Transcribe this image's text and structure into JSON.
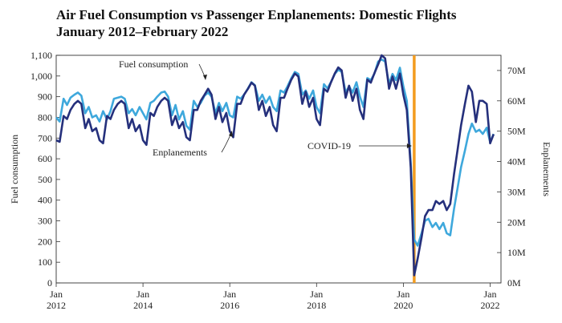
{
  "chart_data": {
    "type": "line",
    "title": "Air Fuel Consumption vs Passenger Enplanements: Domestic Flights",
    "subtitle": "January 2012–February 2022",
    "ylabel": "Fuel consumption",
    "y2label": "Enplanements",
    "ylim": [
      0,
      1100
    ],
    "y2lim": [
      0,
      75
    ],
    "yticks": [
      "0",
      "100",
      "200",
      "300",
      "400",
      "500",
      "600",
      "700",
      "800",
      "900",
      "1,000",
      "1,100"
    ],
    "y2ticks": [
      "0M",
      "10M",
      "20M",
      "30M",
      "40M",
      "50M",
      "60M",
      "70M"
    ],
    "xticks": [
      {
        "value": 2012,
        "line1": "Jan",
        "line2": "2012"
      },
      {
        "value": 2014,
        "line1": "Jan",
        "line2": "2014"
      },
      {
        "value": 2016,
        "line1": "Jan",
        "line2": "2016"
      },
      {
        "value": 2018,
        "line1": "Jan",
        "line2": "2018"
      },
      {
        "value": 2020,
        "line1": "Jan",
        "line2": "2020"
      },
      {
        "value": 2022,
        "line1": "Jan",
        "line2": "2022"
      }
    ],
    "xlim": [
      2012,
      2022.25
    ],
    "series": [
      {
        "name": "Fuel consumption",
        "axis": "left",
        "color": "#3ea8dc",
        "points": [
          [
            2012.0,
            800
          ],
          [
            2012.08,
            780
          ],
          [
            2012.17,
            890
          ],
          [
            2012.25,
            860
          ],
          [
            2012.33,
            895
          ],
          [
            2012.42,
            910
          ],
          [
            2012.5,
            920
          ],
          [
            2012.58,
            905
          ],
          [
            2012.67,
            820
          ],
          [
            2012.75,
            850
          ],
          [
            2012.83,
            800
          ],
          [
            2012.92,
            810
          ],
          [
            2013.0,
            780
          ],
          [
            2013.08,
            830
          ],
          [
            2013.17,
            790
          ],
          [
            2013.25,
            830
          ],
          [
            2013.33,
            890
          ],
          [
            2013.42,
            895
          ],
          [
            2013.5,
            900
          ],
          [
            2013.58,
            890
          ],
          [
            2013.67,
            820
          ],
          [
            2013.75,
            840
          ],
          [
            2013.83,
            810
          ],
          [
            2013.92,
            850
          ],
          [
            2014.0,
            820
          ],
          [
            2014.08,
            790
          ],
          [
            2014.17,
            870
          ],
          [
            2014.25,
            880
          ],
          [
            2014.33,
            900
          ],
          [
            2014.42,
            920
          ],
          [
            2014.5,
            925
          ],
          [
            2014.58,
            900
          ],
          [
            2014.67,
            810
          ],
          [
            2014.75,
            860
          ],
          [
            2014.83,
            790
          ],
          [
            2014.92,
            830
          ],
          [
            2015.0,
            760
          ],
          [
            2015.08,
            740
          ],
          [
            2015.17,
            880
          ],
          [
            2015.25,
            850
          ],
          [
            2015.33,
            870
          ],
          [
            2015.42,
            905
          ],
          [
            2015.5,
            920
          ],
          [
            2015.58,
            900
          ],
          [
            2015.67,
            820
          ],
          [
            2015.75,
            870
          ],
          [
            2015.83,
            830
          ],
          [
            2015.92,
            870
          ],
          [
            2016.0,
            810
          ],
          [
            2016.08,
            800
          ],
          [
            2016.17,
            900
          ],
          [
            2016.25,
            890
          ],
          [
            2016.33,
            910
          ],
          [
            2016.42,
            940
          ],
          [
            2016.5,
            970
          ],
          [
            2016.58,
            955
          ],
          [
            2016.67,
            880
          ],
          [
            2016.75,
            910
          ],
          [
            2016.83,
            870
          ],
          [
            2016.92,
            900
          ],
          [
            2017.0,
            850
          ],
          [
            2017.08,
            830
          ],
          [
            2017.17,
            930
          ],
          [
            2017.25,
            920
          ],
          [
            2017.33,
            950
          ],
          [
            2017.42,
            990
          ],
          [
            2017.5,
            1020
          ],
          [
            2017.58,
            1010
          ],
          [
            2017.67,
            910
          ],
          [
            2017.75,
            930
          ],
          [
            2017.83,
            890
          ],
          [
            2017.92,
            930
          ],
          [
            2018.0,
            850
          ],
          [
            2018.08,
            820
          ],
          [
            2018.17,
            960
          ],
          [
            2018.25,
            940
          ],
          [
            2018.33,
            970
          ],
          [
            2018.42,
            1010
          ],
          [
            2018.5,
            1030
          ],
          [
            2018.58,
            1020
          ],
          [
            2018.67,
            920
          ],
          [
            2018.75,
            950
          ],
          [
            2018.83,
            920
          ],
          [
            2018.92,
            970
          ],
          [
            2019.0,
            900
          ],
          [
            2019.08,
            850
          ],
          [
            2019.17,
            990
          ],
          [
            2019.25,
            980
          ],
          [
            2019.33,
            1010
          ],
          [
            2019.42,
            1070
          ],
          [
            2019.5,
            1080
          ],
          [
            2019.58,
            1070
          ],
          [
            2019.67,
            960
          ],
          [
            2019.75,
            1010
          ],
          [
            2019.83,
            980
          ],
          [
            2019.92,
            1040
          ],
          [
            2020.0,
            950
          ],
          [
            2020.08,
            880
          ],
          [
            2020.17,
            580
          ],
          [
            2020.25,
            210
          ],
          [
            2020.33,
            180
          ],
          [
            2020.42,
            240
          ],
          [
            2020.5,
            300
          ],
          [
            2020.58,
            310
          ],
          [
            2020.67,
            270
          ],
          [
            2020.75,
            290
          ],
          [
            2020.83,
            260
          ],
          [
            2020.92,
            290
          ],
          [
            2021.0,
            240
          ],
          [
            2021.08,
            230
          ],
          [
            2021.17,
            360
          ],
          [
            2021.25,
            460
          ],
          [
            2021.33,
            560
          ],
          [
            2021.42,
            640
          ],
          [
            2021.5,
            720
          ],
          [
            2021.58,
            770
          ],
          [
            2021.67,
            730
          ],
          [
            2021.75,
            740
          ],
          [
            2021.83,
            720
          ],
          [
            2021.92,
            750
          ],
          [
            2022.0,
            680
          ],
          [
            2022.08,
            720
          ]
        ]
      },
      {
        "name": "Enplanements",
        "axis": "right",
        "color": "#25307c",
        "points": [
          [
            2012.0,
            47
          ],
          [
            2012.08,
            46.5
          ],
          [
            2012.17,
            55
          ],
          [
            2012.25,
            54
          ],
          [
            2012.33,
            57
          ],
          [
            2012.42,
            59
          ],
          [
            2012.5,
            60
          ],
          [
            2012.58,
            59
          ],
          [
            2012.67,
            51
          ],
          [
            2012.75,
            54
          ],
          [
            2012.83,
            50
          ],
          [
            2012.92,
            51
          ],
          [
            2013.0,
            47
          ],
          [
            2013.08,
            46
          ],
          [
            2013.17,
            55
          ],
          [
            2013.25,
            54
          ],
          [
            2013.33,
            57
          ],
          [
            2013.42,
            59
          ],
          [
            2013.5,
            60
          ],
          [
            2013.58,
            59
          ],
          [
            2013.67,
            51
          ],
          [
            2013.75,
            54
          ],
          [
            2013.83,
            50
          ],
          [
            2013.92,
            52
          ],
          [
            2014.0,
            47
          ],
          [
            2014.08,
            45.5
          ],
          [
            2014.17,
            56
          ],
          [
            2014.25,
            55
          ],
          [
            2014.33,
            58
          ],
          [
            2014.42,
            60
          ],
          [
            2014.5,
            61
          ],
          [
            2014.58,
            60
          ],
          [
            2014.67,
            52
          ],
          [
            2014.75,
            55
          ],
          [
            2014.83,
            51
          ],
          [
            2014.92,
            53
          ],
          [
            2015.0,
            48
          ],
          [
            2015.08,
            47
          ],
          [
            2015.17,
            57
          ],
          [
            2015.25,
            57
          ],
          [
            2015.33,
            60
          ],
          [
            2015.42,
            62
          ],
          [
            2015.5,
            64
          ],
          [
            2015.58,
            62
          ],
          [
            2015.67,
            54
          ],
          [
            2015.75,
            58
          ],
          [
            2015.83,
            53
          ],
          [
            2015.92,
            56
          ],
          [
            2016.0,
            50
          ],
          [
            2016.08,
            48
          ],
          [
            2016.17,
            59
          ],
          [
            2016.25,
            59
          ],
          [
            2016.33,
            62
          ],
          [
            2016.42,
            64
          ],
          [
            2016.5,
            66
          ],
          [
            2016.58,
            65
          ],
          [
            2016.67,
            57
          ],
          [
            2016.75,
            60
          ],
          [
            2016.83,
            55
          ],
          [
            2016.92,
            58
          ],
          [
            2017.0,
            52
          ],
          [
            2017.08,
            50
          ],
          [
            2017.17,
            61
          ],
          [
            2017.25,
            61
          ],
          [
            2017.33,
            64
          ],
          [
            2017.42,
            67
          ],
          [
            2017.5,
            69
          ],
          [
            2017.58,
            68
          ],
          [
            2017.67,
            59
          ],
          [
            2017.75,
            63
          ],
          [
            2017.83,
            58
          ],
          [
            2017.92,
            61
          ],
          [
            2018.0,
            54
          ],
          [
            2018.08,
            52
          ],
          [
            2018.17,
            64
          ],
          [
            2018.25,
            63
          ],
          [
            2018.33,
            66
          ],
          [
            2018.42,
            69
          ],
          [
            2018.5,
            71
          ],
          [
            2018.58,
            70
          ],
          [
            2018.67,
            61
          ],
          [
            2018.75,
            65
          ],
          [
            2018.83,
            60
          ],
          [
            2018.92,
            64
          ],
          [
            2019.0,
            57
          ],
          [
            2019.08,
            54
          ],
          [
            2019.17,
            67
          ],
          [
            2019.25,
            66
          ],
          [
            2019.33,
            69
          ],
          [
            2019.42,
            72
          ],
          [
            2019.5,
            75
          ],
          [
            2019.58,
            74
          ],
          [
            2019.67,
            64
          ],
          [
            2019.75,
            68
          ],
          [
            2019.83,
            64
          ],
          [
            2019.92,
            69
          ],
          [
            2020.0,
            62
          ],
          [
            2020.08,
            57
          ],
          [
            2020.17,
            38
          ],
          [
            2020.25,
            2.5
          ],
          [
            2020.33,
            8
          ],
          [
            2020.42,
            15
          ],
          [
            2020.5,
            22
          ],
          [
            2020.58,
            24
          ],
          [
            2020.67,
            24
          ],
          [
            2020.75,
            27
          ],
          [
            2020.83,
            26
          ],
          [
            2020.92,
            27
          ],
          [
            2021.0,
            24
          ],
          [
            2021.08,
            26
          ],
          [
            2021.17,
            36
          ],
          [
            2021.25,
            44
          ],
          [
            2021.33,
            52
          ],
          [
            2021.42,
            59
          ],
          [
            2021.5,
            65
          ],
          [
            2021.58,
            63
          ],
          [
            2021.67,
            53
          ],
          [
            2021.75,
            60
          ],
          [
            2021.83,
            60
          ],
          [
            2021.92,
            59
          ],
          [
            2022.0,
            46
          ],
          [
            2022.08,
            49
          ]
        ]
      }
    ],
    "annotations": [
      {
        "text": "Fuel consumption"
      },
      {
        "text": "Enplanements"
      },
      {
        "text": "COVID-19",
        "x": 2020.25,
        "color": "#f39c1f"
      }
    ]
  }
}
